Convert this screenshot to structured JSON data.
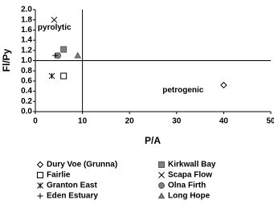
{
  "chart_data": {
    "type": "scatter",
    "x_label": "P/A",
    "y_label": "Fl/Py",
    "xlim": [
      0,
      50
    ],
    "xticks": [
      0,
      10,
      20,
      30,
      40,
      50
    ],
    "ylim": [
      0,
      2
    ],
    "yticks": [
      {
        "value": 0,
        "label": "0.0"
      },
      0.2,
      0.4,
      0.6,
      0.8,
      {
        "value": 1,
        "label": "1.0"
      },
      1.2,
      1.4,
      1.6,
      1.8,
      {
        "value": 2,
        "label": "2.0"
      }
    ],
    "vline": 10,
    "hline": 1,
    "annotations": [
      {
        "text": "pyrolytic",
        "x": 0.5,
        "y": 1.65
      },
      {
        "text": "petrogenic",
        "x": 27,
        "y": 0.42
      }
    ],
    "series": [
      {
        "name": "Dury Voe (Grunna)",
        "marker": "diamond",
        "color": "#000000",
        "x": [
          40
        ],
        "values": [
          0.52
        ]
      },
      {
        "name": "Kirkwall Bay",
        "marker": "square-filled",
        "color": "#808080",
        "x": [
          6
        ],
        "values": [
          1.22
        ]
      },
      {
        "name": "Fairlie",
        "marker": "square",
        "color": "#000000",
        "x": [
          6
        ],
        "values": [
          0.7
        ]
      },
      {
        "name": "Scapa Flow",
        "marker": "x",
        "color": "#000000",
        "x": [
          4
        ],
        "values": [
          1.8
        ]
      },
      {
        "name": "Granton East",
        "marker": "asterisk",
        "color": "#000000",
        "x": [
          3.5
        ],
        "values": [
          0.7
        ]
      },
      {
        "name": "Olna Firth",
        "marker": "circle-filled",
        "color": "#808080",
        "x": [
          4.8
        ],
        "values": [
          1.1
        ]
      },
      {
        "name": "Eden Estuary",
        "marker": "plus",
        "color": "#000000",
        "x": [
          4.2
        ],
        "values": [
          1.1
        ]
      },
      {
        "name": "Long Hope",
        "marker": "triangle-filled",
        "color": "#808080",
        "x": [
          9
        ],
        "values": [
          1.1
        ]
      }
    ]
  }
}
